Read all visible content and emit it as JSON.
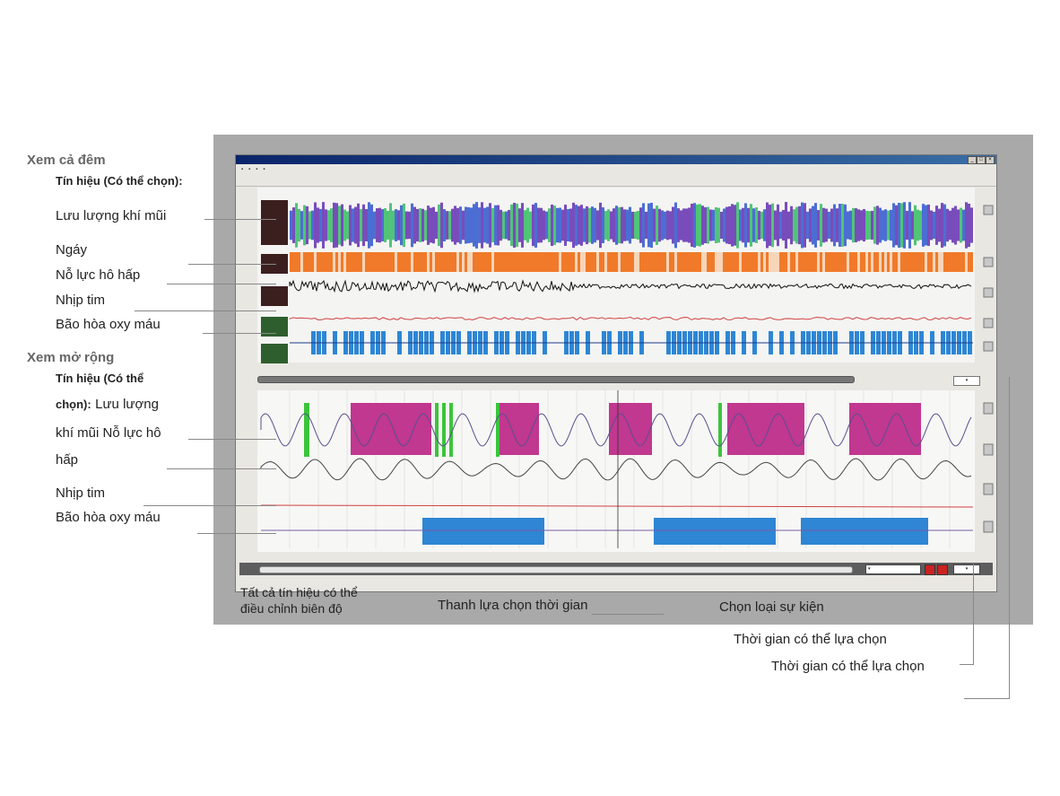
{
  "annotations": {
    "night_view_heading": "Xem cả đêm",
    "night_signals_heading": "Tín hiệu (Có thể chọn):",
    "night_nasal_flow": "Lưu lượng khí mũi",
    "night_day": "Ngáy",
    "night_resp_effort": "Nỗ lực hô hấp",
    "night_heart_rate": "Nhịp tim",
    "night_spo2": "Bão hòa oxy máu",
    "expanded_view_heading": "Xem mở rộng",
    "expanded_signals_line1": "Tín hiệu (Có thể",
    "expanded_signals_line2_bold": "chọn):",
    "expanded_signals_line2": "Lưu lượng",
    "expanded_signals_line3": "khí mũi Nỗ lực hô",
    "expanded_signals_line4": "hấp",
    "expanded_heart_rate": "Nhịp tim",
    "expanded_spo2": "Bão hòa oxy máu",
    "amplitude_line1": "Tất cả tín hiệu có thể",
    "amplitude_line2": "điều chỉnh biên độ",
    "time_bar": "Thanh lựa chọn thời gian",
    "event_type": "Chọn loại sự kiện",
    "selectable_time_1": "Thời gian có thể lựa chọn",
    "selectable_time_2": "Thời gian có thể lựa chọn"
  },
  "colors": {
    "frame": "#a9a9a9",
    "flow_purple": "#6a3bb5",
    "flow_green": "#3fbf6a",
    "snore_orange": "#f07a2a",
    "event_magenta": "#c0388f",
    "event_green": "#3cc43c",
    "event_blue": "#2e86d4",
    "spo2_red": "#d04040"
  }
}
